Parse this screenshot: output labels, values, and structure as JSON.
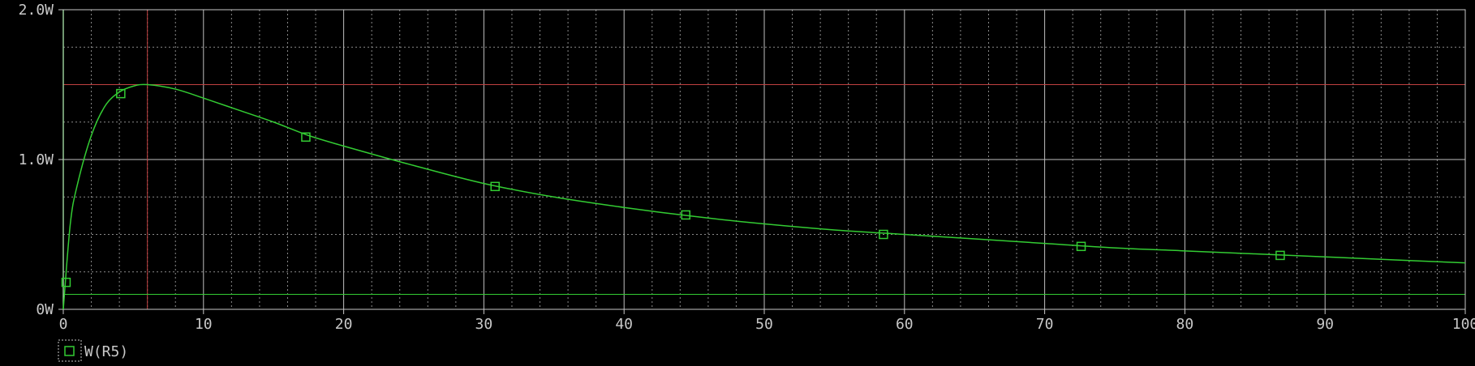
{
  "colors": {
    "background": "#000000",
    "axis": "#c8c8c8",
    "major_grid": "#bfbfbf",
    "minor_grid": "#8a8a8a",
    "trace": "#33cc33",
    "cursor": "#c04040"
  },
  "chart_data": {
    "type": "line",
    "xlim": [
      0,
      100
    ],
    "ylim": [
      0,
      2.0
    ],
    "x_ticks": [
      0,
      10,
      20,
      30,
      40,
      50,
      60,
      70,
      80,
      90,
      100
    ],
    "x_tick_labels": [
      "0",
      "10",
      "20",
      "30",
      "40",
      "50",
      "60",
      "70",
      "80",
      "90",
      "100"
    ],
    "y_ticks": [
      0,
      1.0,
      2.0
    ],
    "y_tick_labels": [
      "0W",
      "1.0W",
      "2.0W"
    ],
    "y_minor_step": 0.25,
    "x_minor_step": 2,
    "grid": true,
    "cursors": {
      "x": 6,
      "y": 1.5,
      "y_low": 0.1
    },
    "series": [
      {
        "legend_label": "W(R5)",
        "x": [
          0,
          0.5,
          1,
          2,
          3,
          4,
          5,
          6,
          8,
          10,
          12.5,
          15,
          17.5,
          20,
          25,
          30,
          35,
          40,
          45,
          50,
          55,
          60,
          65,
          70,
          75,
          80,
          85,
          90,
          95,
          100
        ],
        "values": [
          0,
          0.57,
          0.83,
          1.16,
          1.36,
          1.45,
          1.49,
          1.5,
          1.47,
          1.41,
          1.33,
          1.25,
          1.16,
          1.09,
          0.96,
          0.84,
          0.75,
          0.68,
          0.62,
          0.57,
          0.53,
          0.5,
          0.47,
          0.44,
          0.41,
          0.39,
          0.37,
          0.35,
          0.33,
          0.31
        ],
        "markers_x": [
          0.2,
          4.1,
          17.3,
          30.8,
          44.4,
          58.5,
          72.6,
          86.8
        ],
        "markers_y": [
          0.18,
          1.44,
          1.15,
          0.82,
          0.63,
          0.5,
          0.42,
          0.36
        ]
      }
    ]
  }
}
